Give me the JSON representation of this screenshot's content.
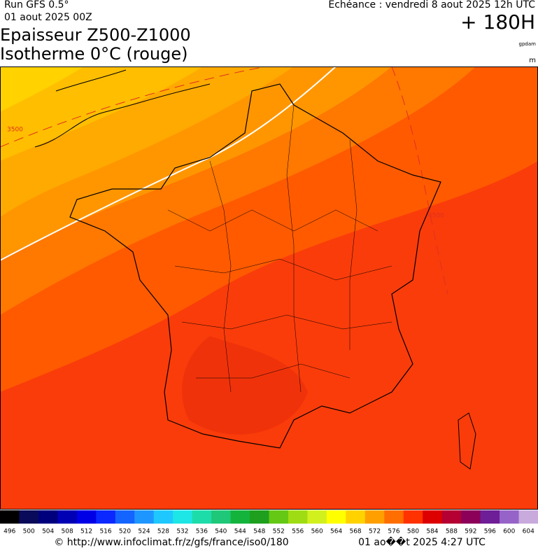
{
  "header": {
    "run": "Run GFS 0.5°",
    "run_date": "01 aout 2025 00Z",
    "echeance": "Echéance : vendredi 8 aout 2025 12h UTC",
    "lead": "+ 180H",
    "title_1": "Epaisseur Z500-Z1000",
    "title_2": "Isotherme 0°C (rouge)",
    "unit_1": "gpdam",
    "unit_2": "m"
  },
  "map": {
    "contour_labels": [
      "3500",
      "4500"
    ]
  },
  "colorbar": {
    "labels": [
      496,
      500,
      504,
      508,
      512,
      516,
      520,
      524,
      528,
      532,
      536,
      540,
      544,
      548,
      552,
      556,
      560,
      564,
      568,
      572,
      576,
      580,
      584,
      588,
      592,
      596,
      600,
      604
    ],
    "colors": [
      "#000000",
      "#0a0a5a",
      "#00007d",
      "#0000b4",
      "#0000e6",
      "#0a28ff",
      "#1464ff",
      "#1e96ff",
      "#1ec8ff",
      "#1ee6e6",
      "#1edcaa",
      "#1ec878",
      "#14b43c",
      "#1ea01e",
      "#64c814",
      "#a0dc14",
      "#d2f01e",
      "#ffff00",
      "#ffd200",
      "#ffa000",
      "#ff6e00",
      "#ff3200",
      "#dc0000",
      "#b40032",
      "#8c005a",
      "#6e1e96",
      "#9664c8",
      "#c8aadc"
    ]
  },
  "footer": {
    "url": "© http://www.infoclimat.fr/z/gfs/france/iso0/180",
    "generated": "01 ao��t 2025  4:27 UTC"
  }
}
